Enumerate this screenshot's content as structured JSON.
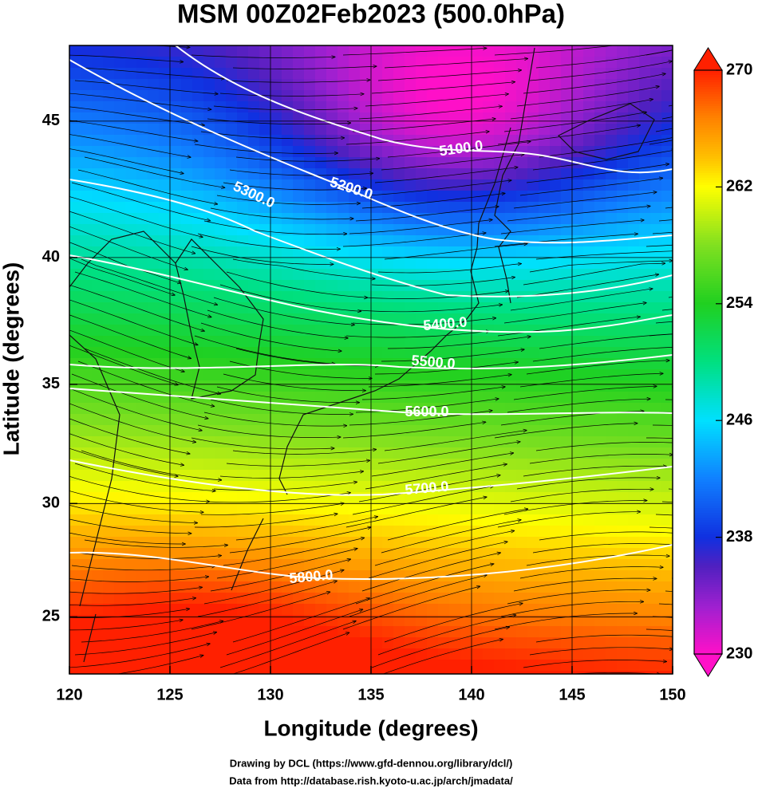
{
  "chart_data": {
    "type": "contour",
    "title": "MSM 00Z02Feb2023 (500.0hPa)",
    "x_label": "Longitude (degrees)",
    "y_label": "Latitude  (degrees)",
    "xlim": [
      120,
      150
    ],
    "xticks": [
      120,
      125,
      130,
      135,
      140,
      145,
      150
    ],
    "ylim": [
      22.4,
      47.6
    ],
    "yticks": [
      25,
      30,
      35,
      40,
      45
    ],
    "projection": "mercator",
    "grid": true,
    "colorbar": {
      "lim": [
        230,
        270
      ],
      "ticks": [
        230,
        238,
        246,
        254,
        262,
        270
      ]
    },
    "contours": [
      {
        "value": 5100,
        "label": "5100.0"
      },
      {
        "value": 5200,
        "label": "5200.0"
      },
      {
        "value": 5300,
        "label": "5300.0"
      },
      {
        "value": 5400,
        "label": "5400.0"
      },
      {
        "value": 5500,
        "label": "5500.0"
      },
      {
        "value": 5600,
        "label": "5600.0"
      },
      {
        "value": 5700,
        "label": "5700.0"
      },
      {
        "value": 5800,
        "label": "5800.0"
      }
    ],
    "footer": [
      "Drawing by DCL (https://www.gfd-dennou.org/library/dcl/)",
      "Data from http://database.rish.kyoto-u.ac.jp/arch/jmadata/"
    ]
  }
}
